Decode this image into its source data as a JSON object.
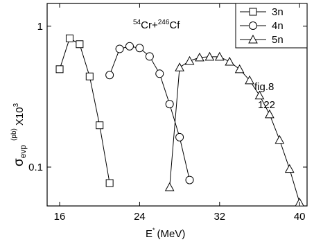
{
  "chart_data": {
    "type": "line",
    "title_parts": [
      "54",
      "Cr+",
      "246",
      "Cf"
    ],
    "y_label_parts": [
      "σ",
      "evp",
      "(pb)",
      "X10",
      "3"
    ],
    "x_label_parts": [
      "E",
      "*",
      "(MeV)"
    ],
    "annotations": [
      "fig.8",
      "122"
    ],
    "xlim": [
      14.75,
      40.75
    ],
    "xticks": [
      16,
      24,
      32,
      40
    ],
    "ylim": [
      0.053,
      1.45
    ],
    "yticks": [
      0.1,
      1
    ],
    "log_y": true,
    "legend": "top-right",
    "series": [
      {
        "name": "3n",
        "marker": "square",
        "color": "#000000",
        "x": [
          16,
          17,
          18,
          19,
          20,
          21
        ],
        "values": [
          0.495,
          0.82,
          0.745,
          0.44,
          0.198,
          0.077
        ]
      },
      {
        "name": "4n",
        "marker": "circle",
        "color": "#000000",
        "x": [
          21,
          22,
          23,
          24,
          25,
          26,
          27,
          28,
          29
        ],
        "values": [
          0.45,
          0.69,
          0.72,
          0.7,
          0.61,
          0.46,
          0.28,
          0.163,
          0.081
        ]
      },
      {
        "name": "5n",
        "marker": "triangle",
        "color": "#000000",
        "x": [
          27,
          28,
          29,
          30,
          31,
          32,
          33,
          34,
          35,
          36,
          37,
          38,
          39,
          40
        ],
        "values": [
          0.072,
          0.51,
          0.567,
          0.6,
          0.607,
          0.607,
          0.56,
          0.495,
          0.413,
          0.322,
          0.237,
          0.156,
          0.097,
          0.056
        ]
      }
    ]
  }
}
